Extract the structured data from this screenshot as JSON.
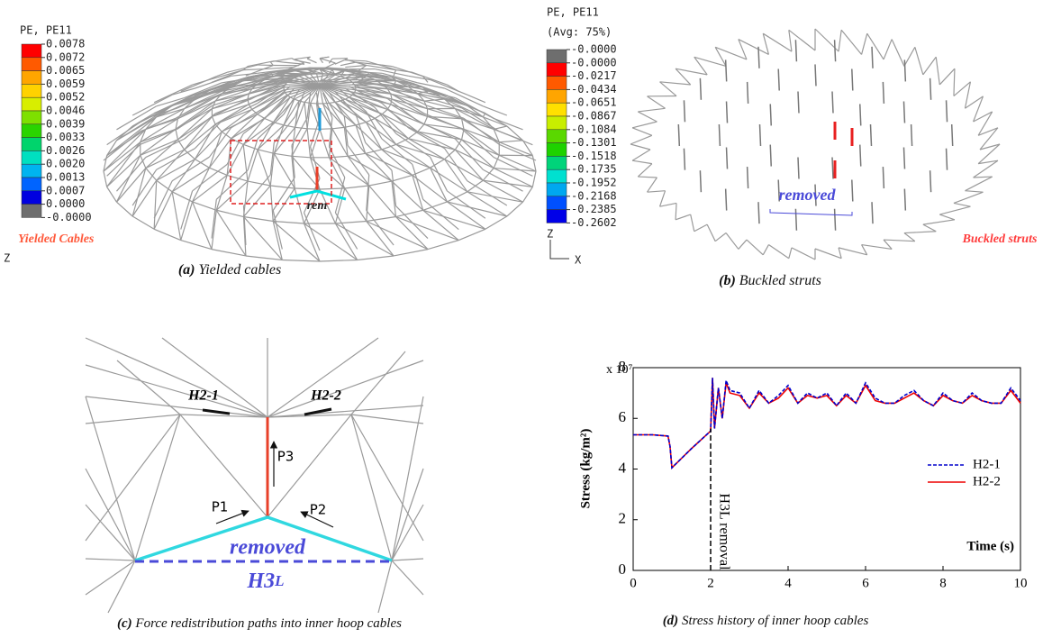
{
  "panel_a": {
    "legend_title": "PE, PE11",
    "labels": [
      "0.0078",
      "0.0072",
      "0.0065",
      "0.0059",
      "0.0052",
      "0.0046",
      "0.0039",
      "0.0033",
      "0.0026",
      "0.0020",
      "0.0013",
      "0.0007",
      "0.0000",
      "-0.0000"
    ],
    "swatches": [
      "#ff0000",
      "#ff5a00",
      "#ffa500",
      "#ffd200",
      "#d8ee00",
      "#7ee000",
      "#2ad400",
      "#00d46c",
      "#00e0c0",
      "#00b4f0",
      "#0064ff",
      "#0000e0",
      "#6e6e6e"
    ],
    "tag": "Yielded Cables",
    "removed_label": "rem",
    "axis_label": "Z",
    "caption_bold": "(a)",
    "caption": "Yielded cables"
  },
  "panel_b": {
    "legend_title": "PE, PE11",
    "legend_subtitle": "(Avg: 75%)",
    "labels": [
      "-0.0000",
      "-0.0000",
      "-0.0217",
      "-0.0434",
      "-0.0651",
      "-0.0867",
      "-0.1084",
      "-0.1301",
      "-0.1518",
      "-0.1735",
      "-0.1952",
      "-0.2168",
      "-0.2385",
      "-0.2602"
    ],
    "swatches": [
      "#6e6e6e",
      "#ff0000",
      "#ff5a00",
      "#ffa500",
      "#ffe000",
      "#c8ee00",
      "#5ad800",
      "#1ed200",
      "#00d47a",
      "#00e0d0",
      "#00a8f0",
      "#0050ff",
      "#0000e8"
    ],
    "removed_label": "removed",
    "tag": "Buckled struts",
    "axis_z": "Z",
    "axis_x": "X",
    "caption_bold": "(b)",
    "caption": "Buckled struts"
  },
  "panel_c": {
    "h21": "H2-1",
    "h22": "H2-2",
    "p1": "P1",
    "p2": "P2",
    "p3": "P3",
    "removed_label": "removed",
    "h3": "H3",
    "h3_sub": "L",
    "caption_bold": "(c)",
    "caption": "Force redistribution paths into inner hoop cables"
  },
  "chart_data": {
    "type": "line",
    "y_label": "Stress (kg/m²)",
    "multiplier": "x 10⁷",
    "x_label": "Time (s)",
    "annotation": "H3L removal",
    "annotation_x": 2,
    "caption_bold": "(d)",
    "caption": "Stress history of inner hoop cables",
    "x": [
      0,
      0.5,
      0.9,
      0.95,
      1.0,
      1.5,
      2.0,
      2.05,
      2.1,
      2.2,
      2.3,
      2.4,
      2.5,
      2.75,
      3.0,
      3.25,
      3.5,
      3.75,
      4.0,
      4.25,
      4.5,
      4.75,
      5.0,
      5.25,
      5.5,
      5.75,
      6.0,
      6.25,
      6.5,
      6.75,
      7.0,
      7.25,
      7.5,
      7.75,
      8.0,
      8.25,
      8.5,
      8.75,
      9.0,
      9.25,
      9.5,
      9.75,
      10.0
    ],
    "series": [
      {
        "name": "H2-1",
        "color": "#0000cc",
        "dashed": true,
        "values": [
          5.35,
          5.35,
          5.3,
          4.9,
          4.05,
          4.8,
          5.5,
          7.6,
          5.6,
          7.2,
          6.0,
          7.5,
          7.1,
          7.0,
          6.4,
          7.1,
          6.6,
          6.9,
          7.3,
          6.6,
          7.0,
          6.8,
          7.0,
          6.5,
          7.0,
          6.6,
          7.4,
          6.8,
          6.6,
          6.6,
          6.9,
          7.1,
          6.7,
          6.5,
          7.0,
          6.7,
          6.6,
          7.0,
          6.7,
          6.6,
          6.6,
          7.2,
          6.7
        ]
      },
      {
        "name": "H2-2",
        "color": "#ee0000",
        "dashed": false,
        "values": [
          5.35,
          5.35,
          5.3,
          4.9,
          4.05,
          4.8,
          5.5,
          7.6,
          5.6,
          7.2,
          6.0,
          7.4,
          7.0,
          6.9,
          6.4,
          7.0,
          6.6,
          6.8,
          7.2,
          6.6,
          6.9,
          6.8,
          6.9,
          6.5,
          6.9,
          6.6,
          7.3,
          6.7,
          6.6,
          6.6,
          6.8,
          7.0,
          6.7,
          6.5,
          6.9,
          6.7,
          6.6,
          6.9,
          6.7,
          6.6,
          6.6,
          7.1,
          6.6
        ]
      }
    ],
    "xlim": [
      0,
      10
    ],
    "ylim": [
      0,
      8
    ],
    "xticks": [
      0,
      2,
      4,
      6,
      8,
      10
    ],
    "yticks": [
      0,
      2,
      4,
      6,
      8
    ],
    "legend": "right"
  }
}
